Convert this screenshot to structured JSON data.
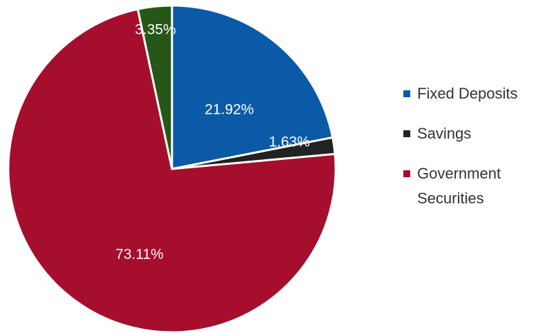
{
  "chart_data": {
    "type": "pie",
    "title": "",
    "start_angle_deg": 0,
    "direction": "clockwise",
    "legend_position": "right",
    "slices": [
      {
        "name": "Fixed Deposits",
        "value": 21.92,
        "label": "21.92%",
        "color": "#0b5aa8"
      },
      {
        "name": "Savings",
        "value": 1.63,
        "label": "1.63%",
        "color": "#222222"
      },
      {
        "name": "Government Securities",
        "value": 73.11,
        "label": "73.11%",
        "color": "#a50e2d"
      },
      {
        "name": "",
        "value": 3.35,
        "label": "3.35%",
        "color": "#265718"
      }
    ]
  },
  "legend": {
    "items": [
      {
        "label": "Fixed Deposits",
        "color": "#0b5aa8"
      },
      {
        "label": "Savings",
        "color": "#222222"
      },
      {
        "label": "Government Securities",
        "color": "#a50e2d"
      }
    ]
  }
}
